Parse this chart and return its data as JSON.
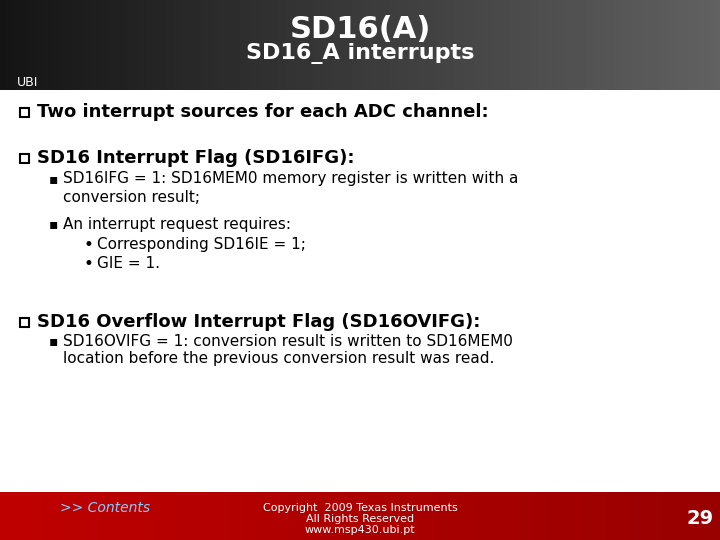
{
  "title_line1": "SD16(A)",
  "title_line2": "SD16_A interrupts",
  "body_bg": "#ffffff",
  "title_color": "#ffffff",
  "body_text_color": "#000000",
  "footer_text_color": "#ffffff",
  "footer_link_color": "#88ccff",
  "page_number": "29",
  "bullet1_text": "Two interrupt sources for each ADC channel:",
  "section1_title": "SD16 Interrupt Flag (SD16IFG):",
  "section1_b1a": "SD16IFG = 1: SD16MEM0 memory register is written with a",
  "section1_b1b": "conversion result;",
  "section1_b2": "An interrupt request requires:",
  "section1_sub1": "Corresponding SD16IE = 1;",
  "section1_sub2": "GIE = 1.",
  "section2_title": "SD16 Overflow Interrupt Flag (SD16OVIFG):",
  "section2_b1a": "SD16OVIFG = 1: conversion result is written to SD16MEM0",
  "section2_b1b": "location before the previous conversion result was read.",
  "footer_link": ">> Contents",
  "footer_copy1": "Copyright  2009 Texas Instruments",
  "footer_copy2": "All Rights Reserved",
  "footer_website": "www.msp430.ubi.pt",
  "ubi_label": "UBI"
}
